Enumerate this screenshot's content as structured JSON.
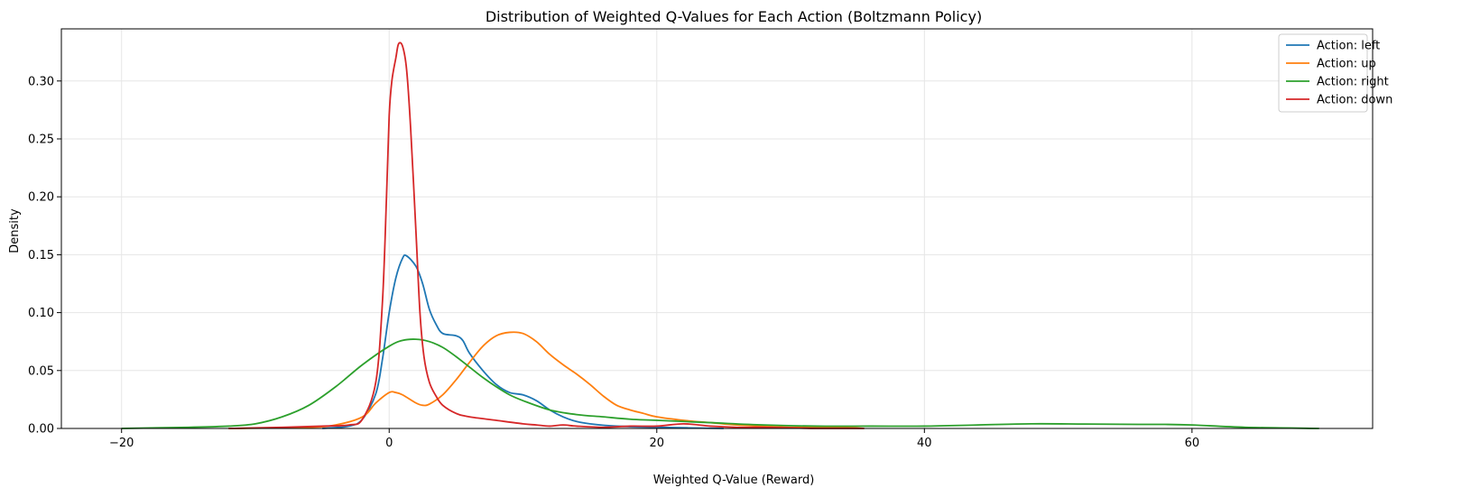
{
  "chart_data": {
    "type": "line",
    "title": "Distribution of Weighted Q-Values for Each Action (Boltzmann Policy)",
    "xlabel": "Weighted Q-Value (Reward)",
    "ylabel": "Density",
    "xlim": [
      -24.5,
      73.5
    ],
    "ylim": [
      0,
      0.345
    ],
    "xticks": [
      -20,
      0,
      20,
      40,
      60
    ],
    "xtick_labels": [
      "−20",
      "0",
      "20",
      "40",
      "60"
    ],
    "yticks": [
      0.0,
      0.05,
      0.1,
      0.15,
      0.2,
      0.25,
      0.3
    ],
    "ytick_labels": [
      "0.00",
      "0.05",
      "0.10",
      "0.15",
      "0.20",
      "0.25",
      "0.30"
    ],
    "grid": true,
    "legend_position": "top-right",
    "series": [
      {
        "name": "Action: left",
        "color": "#1f77b4",
        "points": [
          [
            -5,
            0
          ],
          [
            -3,
            0.002
          ],
          [
            -2,
            0.008
          ],
          [
            -1,
            0.03
          ],
          [
            -0.5,
            0.06
          ],
          [
            0,
            0.1
          ],
          [
            0.5,
            0.13
          ],
          [
            1,
            0.147
          ],
          [
            1.3,
            0.149
          ],
          [
            2,
            0.14
          ],
          [
            2.5,
            0.125
          ],
          [
            3,
            0.103
          ],
          [
            3.5,
            0.09
          ],
          [
            4,
            0.082
          ],
          [
            5,
            0.08
          ],
          [
            5.5,
            0.076
          ],
          [
            6,
            0.065
          ],
          [
            7,
            0.05
          ],
          [
            8,
            0.038
          ],
          [
            9,
            0.031
          ],
          [
            10,
            0.029
          ],
          [
            11,
            0.024
          ],
          [
            12,
            0.016
          ],
          [
            13,
            0.01
          ],
          [
            14,
            0.006
          ],
          [
            15,
            0.004
          ],
          [
            17,
            0.002
          ],
          [
            20,
            0.001
          ],
          [
            25,
            0
          ]
        ]
      },
      {
        "name": "Action: up",
        "color": "#ff7f0e",
        "points": [
          [
            -12,
            0
          ],
          [
            -6,
            0.001
          ],
          [
            -4,
            0.003
          ],
          [
            -2,
            0.01
          ],
          [
            -1,
            0.022
          ],
          [
            0,
            0.031
          ],
          [
            0.5,
            0.031
          ],
          [
            1,
            0.029
          ],
          [
            2,
            0.022
          ],
          [
            2.5,
            0.02
          ],
          [
            3,
            0.021
          ],
          [
            4,
            0.029
          ],
          [
            5,
            0.042
          ],
          [
            6,
            0.057
          ],
          [
            7,
            0.071
          ],
          [
            8,
            0.08
          ],
          [
            9,
            0.083
          ],
          [
            10,
            0.082
          ],
          [
            11,
            0.075
          ],
          [
            12,
            0.064
          ],
          [
            13,
            0.055
          ],
          [
            14,
            0.047
          ],
          [
            15,
            0.038
          ],
          [
            16,
            0.028
          ],
          [
            17,
            0.02
          ],
          [
            18,
            0.016
          ],
          [
            19,
            0.013
          ],
          [
            20,
            0.01
          ],
          [
            22,
            0.007
          ],
          [
            24,
            0.005
          ],
          [
            26,
            0.003
          ],
          [
            28,
            0.002
          ],
          [
            30,
            0.001
          ],
          [
            34,
            0.001
          ],
          [
            35.5,
            0
          ]
        ]
      },
      {
        "name": "Action: right",
        "color": "#2ca02c",
        "points": [
          [
            -20,
            0
          ],
          [
            -15,
            0.001
          ],
          [
            -12,
            0.002
          ],
          [
            -10,
            0.004
          ],
          [
            -8,
            0.01
          ],
          [
            -6,
            0.02
          ],
          [
            -4,
            0.036
          ],
          [
            -2,
            0.055
          ],
          [
            0,
            0.071
          ],
          [
            1,
            0.076
          ],
          [
            2,
            0.077
          ],
          [
            3,
            0.075
          ],
          [
            4,
            0.07
          ],
          [
            5,
            0.062
          ],
          [
            6,
            0.053
          ],
          [
            7,
            0.044
          ],
          [
            8,
            0.036
          ],
          [
            9,
            0.029
          ],
          [
            10,
            0.024
          ],
          [
            12,
            0.016
          ],
          [
            14,
            0.012
          ],
          [
            16,
            0.01
          ],
          [
            18,
            0.008
          ],
          [
            20,
            0.007
          ],
          [
            24,
            0.005
          ],
          [
            28,
            0.003
          ],
          [
            32,
            0.002
          ],
          [
            36,
            0.002
          ],
          [
            40,
            0.002
          ],
          [
            44,
            0.003
          ],
          [
            48,
            0.004
          ],
          [
            52,
            0.0038
          ],
          [
            56,
            0.0035
          ],
          [
            58,
            0.0035
          ],
          [
            60,
            0.003
          ],
          [
            64,
            0.001
          ],
          [
            69.5,
            0
          ]
        ]
      },
      {
        "name": "Action: down",
        "color": "#d62728",
        "points": [
          [
            -12,
            0
          ],
          [
            -8,
            0.001
          ],
          [
            -5,
            0.002
          ],
          [
            -3,
            0.003
          ],
          [
            -2,
            0.008
          ],
          [
            -1,
            0.04
          ],
          [
            -0.5,
            0.11
          ],
          [
            -0.2,
            0.2
          ],
          [
            0,
            0.27
          ],
          [
            0.2,
            0.3
          ],
          [
            0.5,
            0.32
          ],
          [
            0.7,
            0.332
          ],
          [
            1,
            0.33
          ],
          [
            1.3,
            0.31
          ],
          [
            1.6,
            0.26
          ],
          [
            2,
            0.17
          ],
          [
            2.3,
            0.1
          ],
          [
            2.6,
            0.062
          ],
          [
            3,
            0.04
          ],
          [
            3.5,
            0.028
          ],
          [
            4,
            0.02
          ],
          [
            5,
            0.013
          ],
          [
            6,
            0.01
          ],
          [
            8,
            0.007
          ],
          [
            10,
            0.004
          ],
          [
            11,
            0.003
          ],
          [
            12,
            0.002
          ],
          [
            13,
            0.003
          ],
          [
            14,
            0.002
          ],
          [
            16,
            0.001
          ],
          [
            18,
            0.002
          ],
          [
            20,
            0.002
          ],
          [
            22,
            0.004
          ],
          [
            24,
            0.002
          ],
          [
            26,
            0.001
          ],
          [
            28,
            0.001
          ],
          [
            32,
            0
          ],
          [
            35.5,
            0
          ]
        ]
      }
    ]
  }
}
